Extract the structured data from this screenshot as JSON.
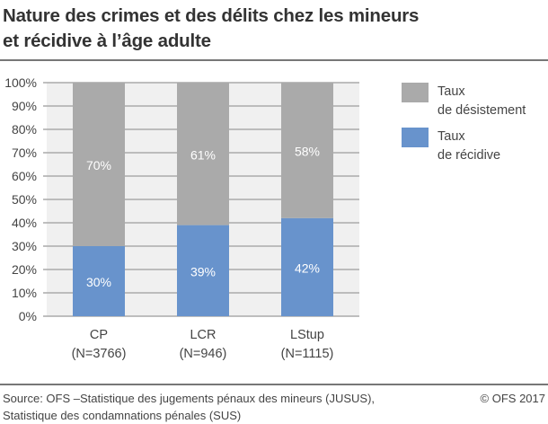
{
  "title_lines": [
    "Nature des crimes et des délits chez les mineurs",
    "et récidive à l’âge adulte"
  ],
  "source_lines": [
    "Source: OFS –Statistique des jugements pénaux des mineurs (JUSUS),",
    "Statistique des condamnations pénales (SUS)"
  ],
  "copyright": "© OFS 2017",
  "chart_data": {
    "type": "bar",
    "stacked": true,
    "categories": [
      [
        "CP",
        "(N=3766)"
      ],
      [
        "LCR",
        "(N=946)"
      ],
      [
        "LStup",
        "(N=1115)"
      ]
    ],
    "series": [
      {
        "name": "Taux de récidive",
        "legend_lines": [
          "Taux",
          "de récidive"
        ],
        "values": [
          30,
          39,
          42
        ],
        "labels": [
          "30%",
          "39%",
          "42%"
        ],
        "color": "#6893cc"
      },
      {
        "name": "Taux de désistement",
        "legend_lines": [
          "Taux",
          "de désistement"
        ],
        "values": [
          70,
          61,
          58
        ],
        "labels": [
          "70%",
          "61%",
          "58%"
        ],
        "color": "#aaaaaa"
      }
    ],
    "ylim": [
      0,
      100
    ],
    "yticks": [
      "0%",
      "10%",
      "20%",
      "30%",
      "40%",
      "50%",
      "60%",
      "70%",
      "80%",
      "90%",
      "100%"
    ],
    "grid": true,
    "legend_position": "right",
    "plot_background": "#f0f0f0"
  }
}
